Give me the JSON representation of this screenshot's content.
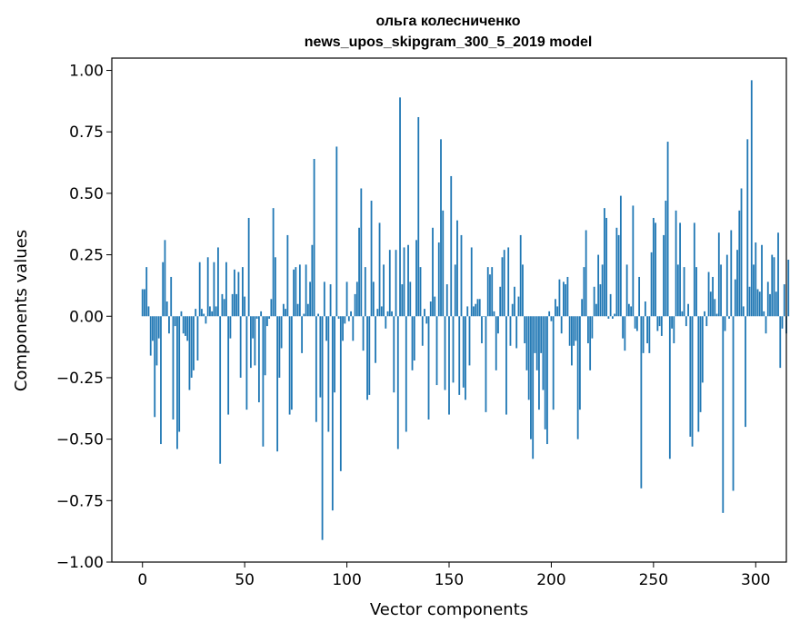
{
  "chart_data": {
    "type": "bar",
    "title": "ольга колесниченко",
    "subtitle": "news_upos_skipgram_300_5_2019 model",
    "xlabel": "Vector components",
    "ylabel": "Components values",
    "xlim": [
      -15,
      315
    ],
    "ylim": [
      -1.0,
      1.05
    ],
    "xticks": [
      0,
      50,
      100,
      150,
      200,
      250,
      300
    ],
    "xtick_labels": [
      "0",
      "50",
      "100",
      "150",
      "200",
      "250",
      "300"
    ],
    "yticks": [
      -1.0,
      -0.75,
      -0.5,
      -0.25,
      0.0,
      0.25,
      0.5,
      0.75,
      1.0
    ],
    "ytick_labels": [
      "−1.00",
      "−0.75",
      "−0.50",
      "−0.25",
      "0.00",
      "0.25",
      "0.50",
      "0.75",
      "1.00"
    ],
    "grid": false,
    "bar_color": "#1f77b4",
    "values": [
      0.11,
      0.11,
      0.2,
      0.04,
      -0.16,
      -0.1,
      -0.41,
      -0.2,
      -0.09,
      -0.52,
      0.22,
      0.31,
      0.06,
      -0.07,
      0.16,
      -0.42,
      -0.04,
      -0.54,
      -0.47,
      0.02,
      -0.07,
      -0.08,
      -0.1,
      -0.3,
      -0.25,
      -0.22,
      0.03,
      -0.18,
      0.22,
      0.03,
      0.01,
      -0.03,
      0.24,
      0.04,
      0.02,
      0.22,
      0.04,
      0.28,
      -0.6,
      0.09,
      0.07,
      0.22,
      -0.4,
      -0.09,
      0.09,
      0.19,
      0.09,
      0.18,
      -0.25,
      0.2,
      0.08,
      -0.38,
      0.4,
      -0.21,
      -0.09,
      -0.2,
      -0.01,
      -0.35,
      0.02,
      -0.53,
      -0.24,
      -0.04,
      -0.01,
      0.07,
      0.44,
      0.24,
      -0.55,
      -0.25,
      -0.13,
      0.05,
      0.03,
      0.33,
      -0.4,
      -0.38,
      0.19,
      0.2,
      0.05,
      0.21,
      -0.15,
      0.01,
      0.21,
      0.05,
      0.14,
      0.29,
      0.64,
      -0.43,
      0.01,
      -0.33,
      -0.91,
      0.14,
      -0.1,
      -0.47,
      0.13,
      -0.79,
      -0.31,
      0.69,
      -0.01,
      -0.63,
      -0.1,
      -0.03,
      0.14,
      -0.02,
      0.02,
      -0.1,
      0.09,
      0.14,
      0.36,
      0.52,
      -0.14,
      0.2,
      -0.34,
      -0.32,
      0.47,
      0.14,
      -0.19,
      0.03,
      0.38,
      0.04,
      0.21,
      -0.05,
      0.02,
      0.27,
      0.02,
      -0.31,
      0.27,
      -0.54,
      0.89,
      0.13,
      0.28,
      -0.47,
      0.29,
      0.14,
      -0.22,
      -0.18,
      0.31,
      0.81,
      0.2,
      -0.12,
      0.03,
      -0.03,
      -0.42,
      0.06,
      0.36,
      0.08,
      -0.28,
      0.3,
      0.72,
      0.43,
      -0.3,
      0.13,
      -0.4,
      0.57,
      -0.27,
      0.21,
      0.39,
      -0.32,
      0.33,
      -0.29,
      -0.34,
      0.04,
      -0.2,
      0.28,
      0.04,
      0.05,
      0.07,
      0.07,
      -0.11,
      0.0,
      -0.39,
      0.2,
      0.17,
      0.2,
      0.02,
      -0.22,
      -0.07,
      0.12,
      0.24,
      0.27,
      -0.4,
      0.28,
      -0.12,
      0.05,
      0.12,
      -0.13,
      0.08,
      0.33,
      0.21,
      -0.11,
      -0.22,
      -0.34,
      -0.5,
      -0.58,
      -0.15,
      -0.22,
      -0.38,
      -0.15,
      -0.3,
      -0.46,
      -0.52,
      0.02,
      -0.02,
      -0.38,
      0.07,
      0.04,
      0.15,
      -0.07,
      0.14,
      0.13,
      0.16,
      -0.12,
      -0.2,
      -0.12,
      -0.1,
      -0.5,
      -0.38,
      0.07,
      0.2,
      0.35,
      -0.11,
      -0.22,
      -0.09,
      0.12,
      0.05,
      0.25,
      0.13,
      0.21,
      0.44,
      0.4,
      -0.01,
      0.09,
      -0.01,
      0.01,
      0.36,
      0.33,
      0.49,
      -0.09,
      -0.14,
      0.21,
      0.05,
      0.04,
      0.45,
      -0.05,
      -0.06,
      0.16,
      -0.7,
      -0.15,
      0.06,
      -0.11,
      -0.15,
      0.26,
      0.4,
      0.38,
      -0.06,
      -0.04,
      -0.08,
      0.33,
      0.47,
      0.71,
      -0.58,
      -0.05,
      -0.11,
      0.43,
      0.21,
      0.38,
      0.02,
      0.2,
      -0.04,
      0.05,
      -0.49,
      -0.53,
      0.38,
      0.2,
      -0.47,
      -0.39,
      -0.27,
      0.02,
      -0.04,
      0.18,
      0.1,
      0.16,
      0.07,
      0.01,
      0.34,
      0.21,
      -0.8,
      -0.06,
      0.25,
      -0.01,
      0.35,
      -0.71,
      0.15,
      0.27,
      0.43,
      0.52,
      0.04,
      -0.45,
      0.72,
      0.12,
      0.96,
      0.21,
      0.3,
      0.11,
      0.1,
      0.29,
      0.02,
      -0.07,
      0.14,
      0.09,
      0.25,
      0.24,
      0.1,
      0.34,
      -0.21,
      -0.05,
      0.13,
      -0.07,
      0.23
    ]
  }
}
